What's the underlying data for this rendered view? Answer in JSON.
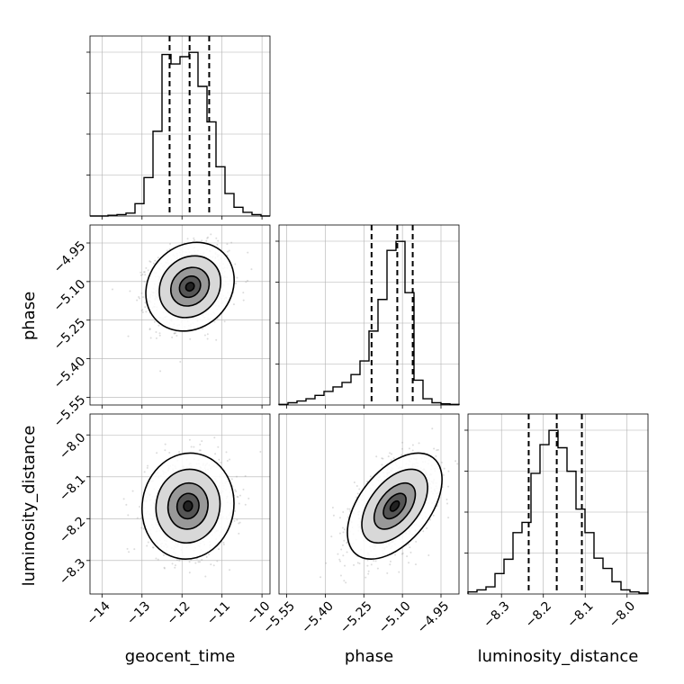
{
  "chart_data": {
    "type": "corner",
    "parameters": [
      "geocent_time",
      "phase",
      "luminosity_distance"
    ],
    "ranges": {
      "geocent_time": [
        -14.3,
        -9.8
      ],
      "phase": [
        -5.58,
        -4.88
      ],
      "luminosity_distance": [
        -8.38,
        -7.95
      ]
    },
    "ticks": {
      "geocent_time": [
        -14,
        -13,
        -12,
        -11,
        -10
      ],
      "phase": [
        -5.55,
        -5.4,
        -5.25,
        -5.1,
        -4.95
      ],
      "luminosity_distance": [
        -8.3,
        -8.2,
        -8.1,
        -8.0
      ]
    },
    "tick_labels": {
      "geocent_time": [
        "−14",
        "−13",
        "−12",
        "−11",
        "−10"
      ],
      "phase": [
        "−5.55",
        "−5.40",
        "−5.25",
        "−5.10",
        "−4.95"
      ],
      "luminosity_distance": [
        "−8.3",
        "−8.2",
        "−8.1",
        "−8.0"
      ]
    },
    "quantiles": {
      "geocent_time": [
        -12.31,
        -11.81,
        -11.32
      ],
      "phase": [
        -5.22,
        -5.12,
        -5.06
      ],
      "luminosity_distance": [
        -8.235,
        -8.168,
        -8.108
      ]
    },
    "histograms": {
      "geocent_time": {
        "edges": [
          -14.3,
          -14.075,
          -13.85,
          -13.625,
          -13.4,
          -13.175,
          -12.95,
          -12.725,
          -12.5,
          -12.275,
          -12.05,
          -11.825,
          -11.6,
          -11.375,
          -11.15,
          -10.925,
          -10.7,
          -10.475,
          -10.25,
          -10.025,
          -9.8
        ],
        "counts": [
          0,
          0,
          1,
          2,
          4,
          17,
          53,
          117,
          223,
          210,
          220,
          226,
          179,
          130,
          68,
          31,
          12,
          5,
          2,
          0
        ]
      },
      "phase": {
        "edges": [
          -5.58,
          -5.545,
          -5.51,
          -5.475,
          -5.44,
          -5.405,
          -5.37,
          -5.335,
          -5.3,
          -5.265,
          -5.23,
          -5.195,
          -5.16,
          -5.125,
          -5.09,
          -5.055,
          -5.02,
          -4.985,
          -4.95,
          -4.915,
          -4.88
        ],
        "counts": [
          1,
          4,
          7,
          11,
          17,
          24,
          32,
          40,
          54,
          78,
          131,
          187,
          274,
          290,
          199,
          44,
          11,
          4,
          2,
          1
        ]
      },
      "luminosity_distance": {
        "edges": [
          -8.38,
          -8.3585,
          -8.337,
          -8.3155,
          -8.294,
          -8.2725,
          -8.251,
          -8.2295,
          -8.208,
          -8.1865,
          -8.165,
          -8.1435,
          -8.122,
          -8.1005,
          -8.079,
          -8.0575,
          -8.036,
          -8.0145,
          -7.993,
          -7.9715,
          -7.95
        ],
        "counts": [
          2,
          4,
          7,
          20,
          34,
          60,
          70,
          118,
          146,
          160,
          143,
          120,
          83,
          60,
          35,
          25,
          12,
          4,
          2,
          1
        ]
      }
    },
    "pairs": [
      {
        "x": "geocent_time",
        "y": "phase",
        "mean": [
          -11.8,
          -5.12
        ],
        "sd": [
          0.48,
          0.075
        ],
        "rho": 0.15
      },
      {
        "x": "geocent_time",
        "y": "luminosity_distance",
        "mean": [
          -11.85,
          -8.17
        ],
        "sd": [
          0.5,
          0.055
        ],
        "rho": 0.05
      },
      {
        "x": "phase",
        "y": "luminosity_distance",
        "mean": [
          -5.13,
          -8.17
        ],
        "sd": [
          0.08,
          0.055
        ],
        "rho": 0.5
      }
    ],
    "grid": true,
    "quantile_style": "dashed",
    "colors": {
      "lines": "#000000",
      "points": "#9a9a9a",
      "grid": "#b0b0b0"
    }
  }
}
